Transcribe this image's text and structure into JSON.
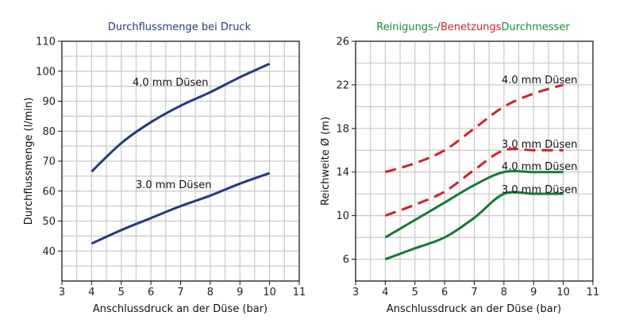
{
  "chart_data": [
    {
      "type": "line",
      "title": "Durchflussmenge bei Druck",
      "title_color": "#2a3a7a",
      "xlabel": "Anschlussdruck an der Düse (bar)",
      "ylabel": "Durchflussmenge (l/min)",
      "xlim": [
        3,
        11
      ],
      "ylim": [
        30,
        110
      ],
      "xticks": [
        3,
        4,
        5,
        6,
        7,
        8,
        9,
        10,
        11
      ],
      "yticks": [
        40,
        50,
        60,
        70,
        80,
        90,
        100,
        110
      ],
      "grid": true,
      "series": [
        {
          "label": "4.0 mm Düsen",
          "color": "#243a7e",
          "dashed": false,
          "x": [
            4,
            5,
            6,
            7,
            8,
            9,
            10
          ],
          "y": [
            66.5,
            76,
            83,
            88.5,
            93,
            98,
            102.5
          ]
        },
        {
          "label": "3.0 mm Düsen",
          "color": "#243a7e",
          "dashed": false,
          "x": [
            4,
            5,
            6,
            7,
            8,
            9,
            10
          ],
          "y": [
            42.5,
            47,
            51,
            55,
            58.5,
            62.5,
            66
          ]
        }
      ]
    },
    {
      "type": "line",
      "title_parts": [
        {
          "text": "Reinigungs-/",
          "color": "#1a8a3a"
        },
        {
          "text": "Benetzungs",
          "color": "#d0202a"
        },
        {
          "text": "Durchmesser",
          "color": "#1a8a3a"
        }
      ],
      "xlabel": "Anschlussdruck an der Düse (bar)",
      "ylabel": "Reichweite Ø (m)",
      "xlim": [
        3,
        11
      ],
      "ylim": [
        4,
        26
      ],
      "xticks": [
        3,
        4,
        5,
        6,
        7,
        8,
        9,
        10,
        11
      ],
      "yticks": [
        6,
        10,
        14,
        18,
        22,
        26
      ],
      "grid": true,
      "series": [
        {
          "label": "4.0 mm Düsen",
          "color": "#d0202a",
          "dashed": true,
          "x": [
            4,
            5,
            6,
            7,
            8,
            9,
            10
          ],
          "y": [
            14,
            14.8,
            16,
            18,
            20,
            21.2,
            22
          ]
        },
        {
          "label": "3.0 mm Düsen",
          "color": "#d0202a",
          "dashed": true,
          "x": [
            4,
            5,
            6,
            7,
            8,
            9,
            10
          ],
          "y": [
            10,
            11,
            12.2,
            14.2,
            16,
            16,
            16
          ]
        },
        {
          "label": "4.0 mm Düsen",
          "color": "#157a35",
          "dashed": false,
          "x": [
            4,
            5,
            6,
            7,
            8,
            9,
            10
          ],
          "y": [
            8,
            9.6,
            11.2,
            12.8,
            14,
            14,
            14
          ]
        },
        {
          "label": "3.0 mm Düsen",
          "color": "#157a35",
          "dashed": false,
          "x": [
            4,
            5,
            6,
            7,
            8,
            9,
            10
          ],
          "y": [
            6,
            7,
            8,
            9.8,
            12,
            12,
            12
          ]
        }
      ]
    }
  ]
}
